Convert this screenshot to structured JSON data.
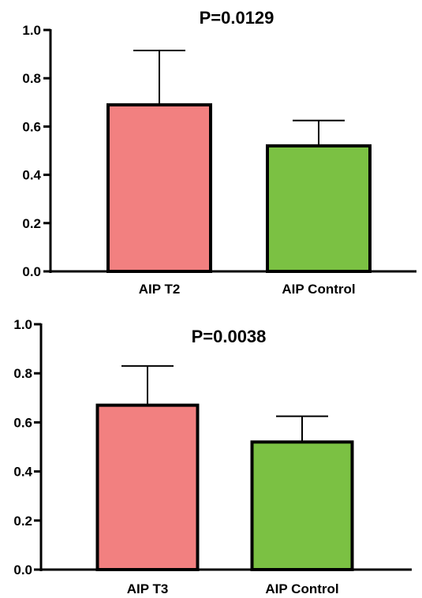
{
  "chart_data": [
    {
      "type": "bar",
      "title": "P=0.0129",
      "categories": [
        "AIP T2",
        "AIP Control"
      ],
      "values": [
        0.69,
        0.52
      ],
      "error_upper": [
        0.915,
        0.625
      ],
      "ylim": [
        0,
        1.0
      ],
      "yticks": [
        "0.0",
        "0.2",
        "0.4",
        "0.6",
        "0.8",
        "1.0"
      ],
      "colors": [
        "#F28080",
        "#7BC143"
      ]
    },
    {
      "type": "bar",
      "title": "P=0.0038",
      "categories": [
        "AIP T3",
        "AIP Control"
      ],
      "values": [
        0.67,
        0.52
      ],
      "error_upper": [
        0.83,
        0.625
      ],
      "ylim": [
        0,
        1.0
      ],
      "yticks": [
        "0.0",
        "0.2",
        "0.4",
        "0.6",
        "0.8",
        "1.0"
      ],
      "colors": [
        "#F28080",
        "#7BC143"
      ]
    }
  ]
}
